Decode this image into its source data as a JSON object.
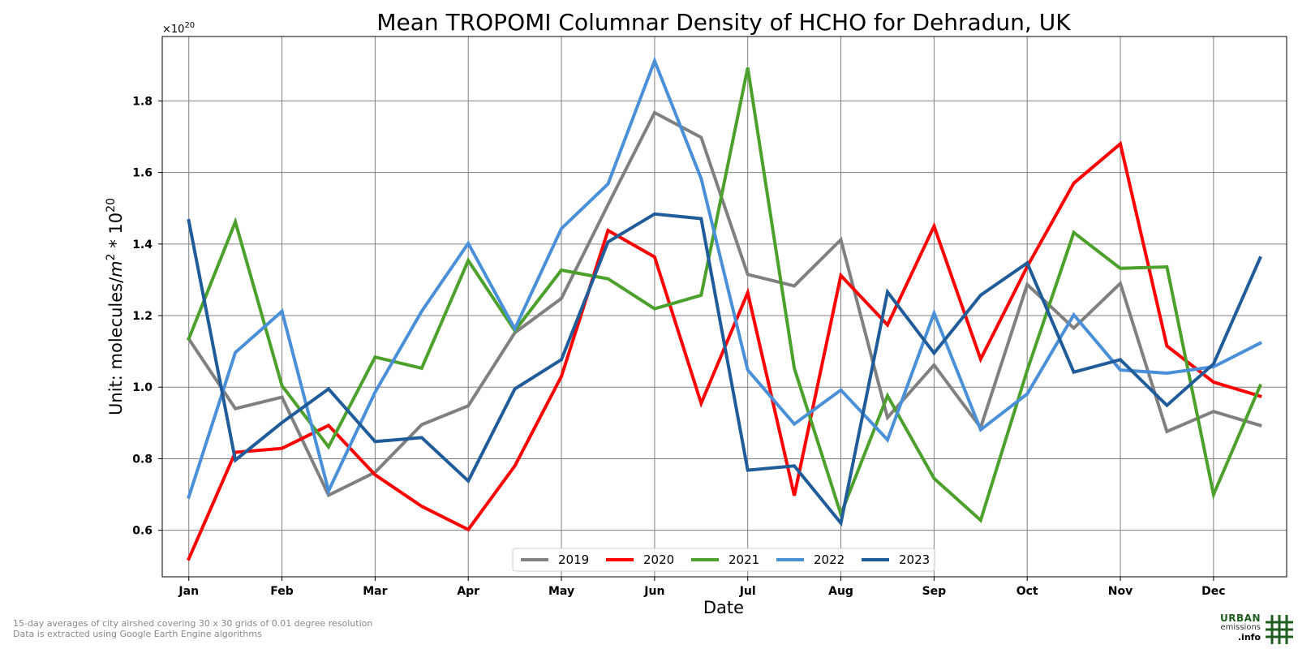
{
  "chart_data": {
    "type": "line",
    "title": "Mean TROPOMI Columnar Density of HCHO for Dehradun, UK",
    "xlabel": "Date",
    "ylabel_prefix": "Unit: molecules/",
    "ylabel_m": "m",
    "ylabel_exp1": "2",
    "ylabel_mid": " * 10",
    "ylabel_exp2": "20",
    "offset_text_base": "×10",
    "offset_text_exp": "20",
    "x_tick_labels": [
      "Jan",
      "Feb",
      "Mar",
      "Apr",
      "May",
      "Jun",
      "Jul",
      "Aug",
      "Sep",
      "Oct",
      "Nov",
      "Dec"
    ],
    "y_ticks": [
      0.6,
      0.8,
      1.0,
      1.2,
      1.4,
      1.6,
      1.8
    ],
    "y_tick_labels": [
      "0.6",
      "0.8",
      "1.0",
      "1.2",
      "1.4",
      "1.6",
      "1.8"
    ],
    "ylim": [
      0.47,
      1.98
    ],
    "xlim": [
      -0.57,
      23.57
    ],
    "grid": true,
    "legend_position": "lower-center",
    "x_points_per_month": 2,
    "series": [
      {
        "name": "2019",
        "color": "#808080",
        "values": [
          1.135,
          0.94,
          0.972,
          0.698,
          0.762,
          0.895,
          0.948,
          1.152,
          1.248,
          1.51,
          1.767,
          1.698,
          1.315,
          1.283,
          1.412,
          0.915,
          1.062,
          0.887,
          1.287,
          1.165,
          1.29,
          0.876,
          0.932,
          0.893
        ]
      },
      {
        "name": "2020",
        "color": "#ff0000",
        "values": [
          0.52,
          0.818,
          0.829,
          0.893,
          0.755,
          0.667,
          0.602,
          0.78,
          1.03,
          1.438,
          1.364,
          0.955,
          1.264,
          0.697,
          1.312,
          1.174,
          1.45,
          1.078,
          1.337,
          1.57,
          1.68,
          1.115,
          1.014,
          0.975
        ]
      },
      {
        "name": "2021",
        "color": "#4ca02c",
        "values": [
          1.135,
          1.462,
          1.004,
          0.833,
          1.084,
          1.053,
          1.354,
          1.158,
          1.327,
          1.303,
          1.219,
          1.257,
          1.893,
          1.053,
          0.645,
          0.976,
          0.745,
          0.628,
          1.047,
          1.432,
          1.332,
          1.336,
          0.7,
          1.004
        ]
      },
      {
        "name": "2022",
        "color": "#4a90d9",
        "values": [
          0.693,
          1.097,
          1.212,
          0.71,
          0.986,
          1.212,
          1.402,
          1.163,
          1.443,
          1.568,
          1.912,
          1.583,
          1.048,
          0.897,
          0.992,
          0.853,
          1.207,
          0.881,
          0.981,
          1.202,
          1.048,
          1.039,
          1.057,
          1.123
        ]
      },
      {
        "name": "2023",
        "color": "#1f5c99",
        "values": [
          1.465,
          0.796,
          0.901,
          0.995,
          0.848,
          0.859,
          0.738,
          0.995,
          1.077,
          1.406,
          1.484,
          1.471,
          0.768,
          0.78,
          0.62,
          1.266,
          1.095,
          1.257,
          1.347,
          1.042,
          1.077,
          0.949,
          1.065,
          1.361
        ]
      }
    ]
  },
  "footer": {
    "line1": "15-day averages of city airshed covering 30 x 30 grids of 0.01 degree resolution",
    "line2": "Data is extracted using Google Earth Engine algorithms"
  },
  "logo": {
    "line1": "URBAN",
    "line2": "emissions",
    "line3": ".info",
    "color": "#1f5c1f"
  }
}
